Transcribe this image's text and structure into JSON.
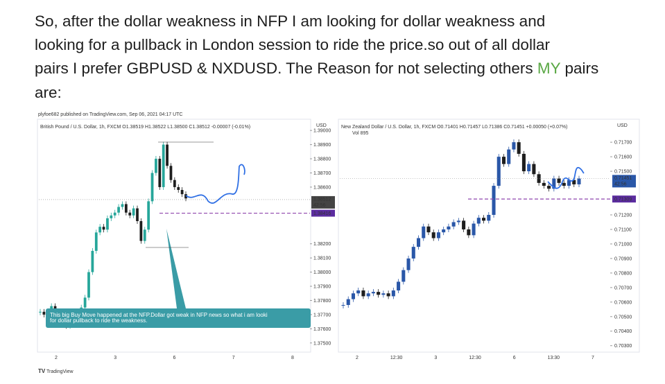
{
  "paragraph": {
    "line1": "So, after the dollar weakness in NFP I am looking for dollar weakness and",
    "line2": "looking for a pullback in London session to ride the price.so out of all dollar",
    "line3_before": "pairs I prefer GBPUSD & NXDUSD. The Reason for not selecting others ",
    "highlight": "MY",
    "line3_after": " pairs",
    "line4": "are:"
  },
  "publisher": "plyfoe682 published on TradingView.com, Sep 06, 2021 04:17 UTC",
  "footer": "TradingView",
  "chart_data": [
    {
      "type": "candlestick",
      "legend": "British Pound / U.S. Dollar, 1h, FXCM O1.38519 H1.38522 L1.38500 C1.38512 -0.00007 (-0.01%)",
      "currency": "USD",
      "ylim": [
        1.3745,
        1.3904
      ],
      "yticks": [
        {
          "value": 1.39,
          "label": "1.39000"
        },
        {
          "value": 1.389,
          "label": "1.38900"
        },
        {
          "value": 1.388,
          "label": "1.38800"
        },
        {
          "value": 1.387,
          "label": "1.38700"
        },
        {
          "value": 1.386,
          "label": "1.38600"
        },
        {
          "value": 1.382,
          "label": "1.38200"
        },
        {
          "value": 1.381,
          "label": "1.38100"
        },
        {
          "value": 1.38,
          "label": "1.38000"
        },
        {
          "value": 1.379,
          "label": "1.37900"
        },
        {
          "value": 1.378,
          "label": "1.37800"
        },
        {
          "value": 1.377,
          "label": "1.37700"
        },
        {
          "value": 1.376,
          "label": "1.37600"
        },
        {
          "value": 1.375,
          "label": "1.37500"
        }
      ],
      "price_label": {
        "value": 1.38512,
        "label": "1.38512",
        "countdown": "42:56"
      },
      "level_label": {
        "value": 1.38416,
        "label": "1.38416"
      },
      "xticks": [
        "2",
        "3",
        "6",
        "7",
        "8"
      ],
      "color_up": "#26a69a",
      "color_down": "#1e1e1e",
      "values": [
        1.3772,
        1.377,
        1.3768,
        1.3776,
        1.377,
        1.3764,
        1.3768,
        1.3762,
        1.3766,
        1.377,
        1.3768,
        1.3775,
        1.3782,
        1.38,
        1.3815,
        1.3828,
        1.3832,
        1.383,
        1.3838,
        1.384,
        1.3842,
        1.3846,
        1.3848,
        1.3842,
        1.384,
        1.3845,
        1.3836,
        1.3822,
        1.383,
        1.385,
        1.387,
        1.388,
        1.386,
        1.389,
        1.3875,
        1.3865,
        1.386,
        1.3858,
        1.3855,
        1.3852
      ],
      "annotation": [
        "This big Buy Move happened at the NFP.Dollar got weak in NFP news so what i am looki",
        "for dollar pullback to ride the weakness."
      ]
    },
    {
      "type": "candlestick",
      "legend": "New Zealand Dollar / U.S. Dollar, 1h, FXCM O0.71401 H0.71457 L0.71386 C0.71451 +0.00050 (+0.07%)",
      "volume_label": "Vol 895",
      "currency": "USD",
      "ylim": [
        0.7027,
        0.7182
      ],
      "yticks": [
        {
          "value": 0.717,
          "label": "0.71700"
        },
        {
          "value": 0.716,
          "label": "0.71600"
        },
        {
          "value": 0.715,
          "label": "0.71500"
        },
        {
          "value": 0.712,
          "label": "0.71200"
        },
        {
          "value": 0.711,
          "label": "0.71100"
        },
        {
          "value": 0.71,
          "label": "0.71000"
        },
        {
          "value": 0.709,
          "label": "0.70900"
        },
        {
          "value": 0.708,
          "label": "0.70800"
        },
        {
          "value": 0.707,
          "label": "0.70700"
        },
        {
          "value": 0.706,
          "label": "0.70600"
        },
        {
          "value": 0.705,
          "label": "0.70500"
        },
        {
          "value": 0.704,
          "label": "0.70400"
        },
        {
          "value": 0.703,
          "label": "0.70300"
        }
      ],
      "price_label": {
        "value": 0.71451,
        "label": "0.71451",
        "countdown": "42:56"
      },
      "level_label": {
        "value": 0.71309,
        "label": "0.71309"
      },
      "xticks": [
        "2",
        "12:30",
        "3",
        "12:30",
        "6",
        "13:30",
        "7"
      ],
      "color_up": "#2a57a8",
      "color_down": "#1e1e1e",
      "values": [
        0.7058,
        0.7062,
        0.7066,
        0.7068,
        0.7064,
        0.7066,
        0.7067,
        0.7065,
        0.7066,
        0.7064,
        0.7068,
        0.7074,
        0.7082,
        0.709,
        0.7098,
        0.7104,
        0.7112,
        0.7108,
        0.7104,
        0.7108,
        0.711,
        0.7112,
        0.7115,
        0.7116,
        0.711,
        0.7106,
        0.7114,
        0.7118,
        0.7116,
        0.712,
        0.714,
        0.716,
        0.7155,
        0.7165,
        0.717,
        0.7162,
        0.715,
        0.7155,
        0.7148,
        0.7142,
        0.714,
        0.7138,
        0.7145,
        0.7142,
        0.714,
        0.7144,
        0.7141,
        0.7145
      ]
    }
  ]
}
